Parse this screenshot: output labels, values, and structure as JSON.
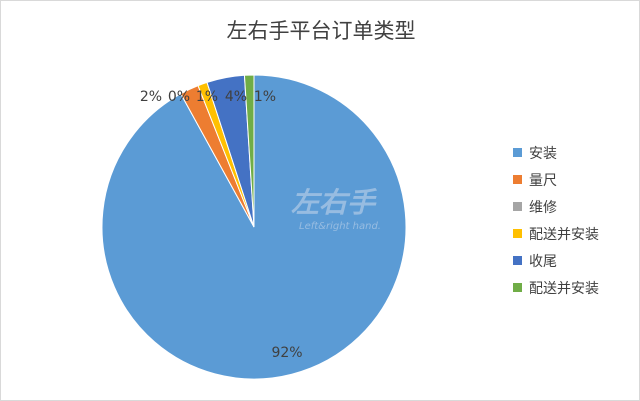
{
  "chart_data": {
    "type": "pie",
    "title": "左右手平台订单类型",
    "categories": [
      "安装",
      "量尺",
      "维修",
      "配送并安装",
      "收尾",
      "配送并安装"
    ],
    "values": [
      92,
      2,
      0,
      1,
      4,
      1
    ],
    "labels": [
      "92%",
      "2%",
      "0%",
      "1%",
      "4%",
      "1%"
    ],
    "colors": [
      "#5b9bd5",
      "#ed7d31",
      "#a5a5a5",
      "#ffc000",
      "#4472c4",
      "#70ad47"
    ],
    "start": "top",
    "direction": "clockwise",
    "legend": "right"
  },
  "watermark": {
    "logo": "左右手",
    "tagline": "Left&right hand."
  }
}
